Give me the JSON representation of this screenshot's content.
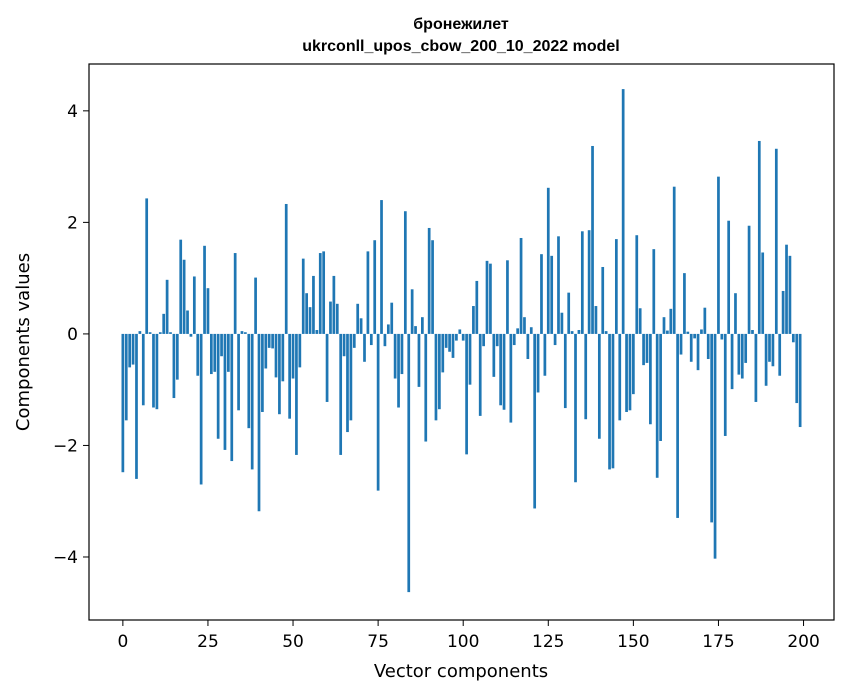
{
  "chart_data": {
    "type": "bar",
    "title": "бронежилет",
    "subtitle": "ukrconll_upos_cbow_200_10_2022 model",
    "xlabel": "Vector components",
    "ylabel": "Components values",
    "xlim": [
      -9.95,
      208.95
    ],
    "ylim": [
      -5.13,
      4.84
    ],
    "xticks": [
      0,
      25,
      50,
      75,
      100,
      125,
      150,
      175,
      200
    ],
    "yticks": [
      -4,
      -2,
      0,
      2,
      4
    ],
    "ytick_labels": [
      "−4",
      "−2",
      "0",
      "2",
      "4"
    ],
    "bar_color": "#1f77b4",
    "x": [
      0,
      1,
      2,
      3,
      4,
      5,
      6,
      7,
      8,
      9,
      10,
      11,
      12,
      13,
      14,
      15,
      16,
      17,
      18,
      19,
      20,
      21,
      22,
      23,
      24,
      25,
      26,
      27,
      28,
      29,
      30,
      31,
      32,
      33,
      34,
      35,
      36,
      37,
      38,
      39,
      40,
      41,
      42,
      43,
      44,
      45,
      46,
      47,
      48,
      49,
      50,
      51,
      52,
      53,
      54,
      55,
      56,
      57,
      58,
      59,
      60,
      61,
      62,
      63,
      64,
      65,
      66,
      67,
      68,
      69,
      70,
      71,
      72,
      73,
      74,
      75,
      76,
      77,
      78,
      79,
      80,
      81,
      82,
      83,
      84,
      85,
      86,
      87,
      88,
      89,
      90,
      91,
      92,
      93,
      94,
      95,
      96,
      97,
      98,
      99,
      100,
      101,
      102,
      103,
      104,
      105,
      106,
      107,
      108,
      109,
      110,
      111,
      112,
      113,
      114,
      115,
      116,
      117,
      118,
      119,
      120,
      121,
      122,
      123,
      124,
      125,
      126,
      127,
      128,
      129,
      130,
      131,
      132,
      133,
      134,
      135,
      136,
      137,
      138,
      139,
      140,
      141,
      142,
      143,
      144,
      145,
      146,
      147,
      148,
      149,
      150,
      151,
      152,
      153,
      154,
      155,
      156,
      157,
      158,
      159,
      160,
      161,
      162,
      163,
      164,
      165,
      166,
      167,
      168,
      169,
      170,
      171,
      172,
      173,
      174,
      175,
      176,
      177,
      178,
      179,
      180,
      181,
      182,
      183,
      184,
      185,
      186,
      187,
      188,
      189,
      190,
      191,
      192,
      193,
      194,
      195,
      196,
      197,
      198,
      199
    ],
    "values": [
      -2.48,
      -1.55,
      -0.6,
      -0.55,
      -2.6,
      0.05,
      -1.28,
      2.43,
      0.03,
      -1.32,
      -1.35,
      0.03,
      0.36,
      0.97,
      0.03,
      -1.15,
      -0.82,
      1.69,
      1.33,
      0.42,
      -0.05,
      1.03,
      -0.75,
      -2.7,
      1.58,
      0.82,
      -0.72,
      -0.68,
      -1.88,
      -0.4,
      -2.08,
      -0.68,
      -2.28,
      1.45,
      -1.37,
      0.05,
      0.03,
      -1.69,
      -2.43,
      1.01,
      -3.18,
      -1.4,
      -0.62,
      -0.25,
      -0.26,
      -0.78,
      -1.44,
      -0.85,
      2.33,
      -1.52,
      -0.8,
      -2.17,
      -0.6,
      1.35,
      0.73,
      0.48,
      1.04,
      0.07,
      1.45,
      1.48,
      -1.22,
      0.58,
      1.04,
      0.54,
      -2.17,
      -0.4,
      -1.76,
      -1.55,
      -0.25,
      0.54,
      0.28,
      -0.5,
      1.48,
      -0.2,
      1.68,
      -2.81,
      2.4,
      -0.22,
      0.17,
      0.56,
      -0.8,
      -1.32,
      -0.72,
      2.2,
      -4.63,
      0.8,
      0.14,
      -0.95,
      0.3,
      -1.93,
      1.9,
      1.68,
      -1.55,
      -1.35,
      -0.69,
      -0.25,
      -0.32,
      -0.43,
      -0.12,
      0.08,
      -0.12,
      -2.16,
      -0.91,
      0.5,
      0.95,
      -1.47,
      -0.22,
      1.31,
      1.26,
      -0.77,
      -0.22,
      -1.28,
      -1.36,
      1.32,
      -1.59,
      -0.2,
      0.1,
      1.72,
      0.3,
      -0.45,
      0.12,
      -3.13,
      -1.05,
      1.43,
      -0.75,
      2.62,
      1.4,
      -0.2,
      1.75,
      0.38,
      -1.33,
      0.74,
      0.05,
      -2.66,
      0.07,
      1.84,
      -1.53,
      1.86,
      3.37,
      0.5,
      -1.88,
      1.2,
      0.05,
      -2.43,
      -2.41,
      1.7,
      -1.55,
      4.39,
      -1.4,
      -1.37,
      -1.08,
      1.77,
      0.46,
      -0.56,
      -0.52,
      -1.62,
      1.52,
      -2.58,
      -1.92,
      0.3,
      0.06,
      0.45,
      2.64,
      -3.3,
      -0.37,
      1.09,
      0.04,
      -0.5,
      -0.08,
      -0.65,
      0.08,
      0.47,
      -0.45,
      -3.38,
      -4.03,
      2.82,
      -0.1,
      -1.83,
      2.03,
      -0.99,
      0.73,
      -0.73,
      -0.8,
      -0.52,
      1.94,
      0.07,
      -1.22,
      3.46,
      1.46,
      -0.93,
      -0.5,
      -0.58,
      3.32,
      -0.75,
      0.77,
      1.6,
      1.4,
      -0.15,
      -1.24,
      -1.67
    ]
  }
}
